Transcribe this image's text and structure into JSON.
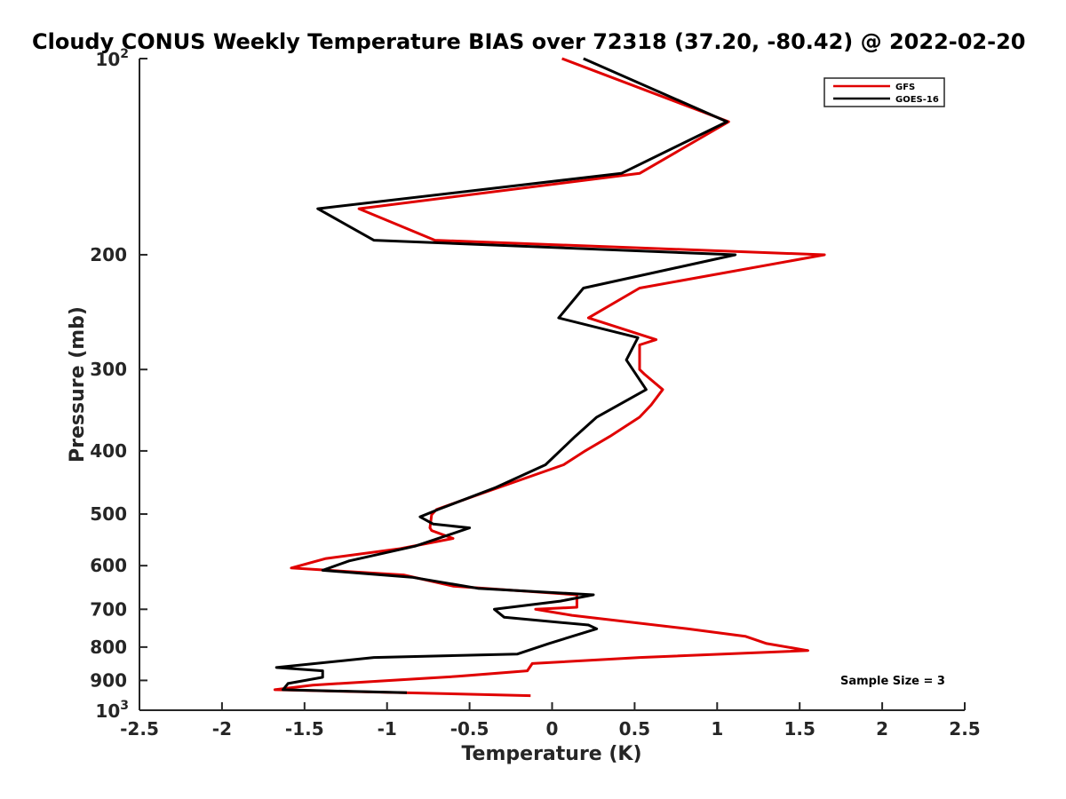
{
  "chart_data": {
    "type": "line",
    "title": "Cloudy CONUS Weekly Temperature BIAS over 72318 (37.20, -80.42) @ 2022-02-20",
    "xlabel": "Temperature (K)",
    "ylabel": "Pressure (mb)",
    "xlim": [
      -2.5,
      2.5
    ],
    "ylim": [
      100,
      1000
    ],
    "y_scale": "log",
    "y_reversed": true,
    "x_ticks": [
      {
        "value": -2.5,
        "label": "-2.5"
      },
      {
        "value": -2,
        "label": "-2"
      },
      {
        "value": -1.5,
        "label": "-1.5"
      },
      {
        "value": -1,
        "label": "-1"
      },
      {
        "value": -0.5,
        "label": "-0.5"
      },
      {
        "value": 0,
        "label": "0"
      },
      {
        "value": 0.5,
        "label": "0.5"
      },
      {
        "value": 1,
        "label": "1"
      },
      {
        "value": 1.5,
        "label": "1.5"
      },
      {
        "value": 2,
        "label": "2"
      },
      {
        "value": 2.5,
        "label": "2.5"
      }
    ],
    "y_ticks": [
      {
        "value": 100,
        "label": "10",
        "sup": "2"
      },
      {
        "value": 200,
        "label": "200",
        "sup": ""
      },
      {
        "value": 300,
        "label": "300",
        "sup": ""
      },
      {
        "value": 400,
        "label": "400",
        "sup": ""
      },
      {
        "value": 500,
        "label": "500",
        "sup": ""
      },
      {
        "value": 600,
        "label": "600",
        "sup": ""
      },
      {
        "value": 700,
        "label": "700",
        "sup": ""
      },
      {
        "value": 800,
        "label": "800",
        "sup": ""
      },
      {
        "value": 900,
        "label": "900",
        "sup": ""
      },
      {
        "value": 1000,
        "label": "10",
        "sup": "3"
      }
    ],
    "legend_position": "top-right",
    "annotation": "Sample Size = 3",
    "series": [
      {
        "name": "GFS",
        "color": "#e00000",
        "points": [
          [
            0.06,
            100
          ],
          [
            1.07,
            125
          ],
          [
            0.53,
            150
          ],
          [
            -1.17,
            170
          ],
          [
            -0.71,
            190
          ],
          [
            1.65,
            200
          ],
          [
            0.53,
            225
          ],
          [
            0.22,
            250
          ],
          [
            0.63,
            270
          ],
          [
            0.53,
            275
          ],
          [
            0.53,
            300
          ],
          [
            0.56,
            305
          ],
          [
            0.67,
            322
          ],
          [
            0.6,
            340
          ],
          [
            0.53,
            355
          ],
          [
            0.35,
            380
          ],
          [
            0.2,
            400
          ],
          [
            0.07,
            420
          ],
          [
            -0.48,
            470
          ],
          [
            -0.7,
            492
          ],
          [
            -0.73,
            501
          ],
          [
            -0.74,
            525
          ],
          [
            -0.73,
            530
          ],
          [
            -0.6,
            545
          ],
          [
            -0.92,
            565
          ],
          [
            -1.37,
            585
          ],
          [
            -1.58,
            605
          ],
          [
            -0.9,
            620
          ],
          [
            -0.6,
            645
          ],
          [
            0.15,
            665
          ],
          [
            0.15,
            695
          ],
          [
            -0.1,
            700
          ],
          [
            0.12,
            715
          ],
          [
            0.82,
            750
          ],
          [
            1.17,
            770
          ],
          [
            1.3,
            790
          ],
          [
            1.55,
            810
          ],
          [
            0.53,
            830
          ],
          [
            -0.12,
            848
          ],
          [
            -0.15,
            870
          ],
          [
            -0.57,
            887
          ],
          [
            -1.45,
            915
          ],
          [
            -1.68,
            930
          ],
          [
            -0.13,
            950
          ]
        ]
      },
      {
        "name": "GOES-16",
        "color": "#000000",
        "points": [
          [
            0.19,
            100
          ],
          [
            1.06,
            125
          ],
          [
            0.42,
            150
          ],
          [
            -1.42,
            170
          ],
          [
            -1.08,
            190
          ],
          [
            1.11,
            200
          ],
          [
            0.19,
            225
          ],
          [
            0.04,
            250
          ],
          [
            0.52,
            268
          ],
          [
            0.45,
            290
          ],
          [
            0.57,
            322
          ],
          [
            0.27,
            355
          ],
          [
            0.14,
            380
          ],
          [
            -0.04,
            420
          ],
          [
            -0.34,
            455
          ],
          [
            -0.69,
            492
          ],
          [
            -0.8,
            505
          ],
          [
            -0.72,
            518
          ],
          [
            -0.5,
            525
          ],
          [
            -0.83,
            560
          ],
          [
            -1.23,
            590
          ],
          [
            -1.39,
            610
          ],
          [
            -0.85,
            625
          ],
          [
            -0.45,
            650
          ],
          [
            0.25,
            665
          ],
          [
            0.05,
            680
          ],
          [
            -0.35,
            700
          ],
          [
            -0.29,
            720
          ],
          [
            0.22,
            740
          ],
          [
            0.27,
            750
          ],
          [
            -0.02,
            790
          ],
          [
            -0.21,
            820
          ],
          [
            -1.08,
            830
          ],
          [
            -1.67,
            860
          ],
          [
            -1.39,
            870
          ],
          [
            -1.39,
            890
          ],
          [
            -1.6,
            910
          ],
          [
            -1.63,
            930
          ],
          [
            -0.88,
            940
          ]
        ]
      }
    ]
  }
}
